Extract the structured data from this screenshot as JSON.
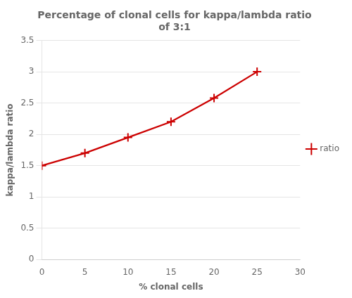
{
  "chart_data": {
    "type": "line",
    "title": "Percentage of clonal cells for kappa/lambda ratio\nof 3:1",
    "xlabel": "% clonal cells",
    "ylabel": "kappa/lambda ratio",
    "x": [
      0,
      5,
      10,
      15,
      20,
      25
    ],
    "series": [
      {
        "name": "ratio",
        "color": "#cc0000",
        "marker": "+",
        "values": [
          1.5,
          1.7,
          1.95,
          2.2,
          2.58,
          3.0
        ]
      }
    ],
    "xlim": [
      0,
      30
    ],
    "ylim": [
      0,
      3.5
    ],
    "xticks": [
      0,
      5,
      10,
      15,
      20,
      25,
      30
    ],
    "yticks": [
      0,
      0.5,
      1.0,
      1.5,
      2.0,
      2.5,
      3.0,
      3.5
    ],
    "grid": "y",
    "legend": "right"
  }
}
